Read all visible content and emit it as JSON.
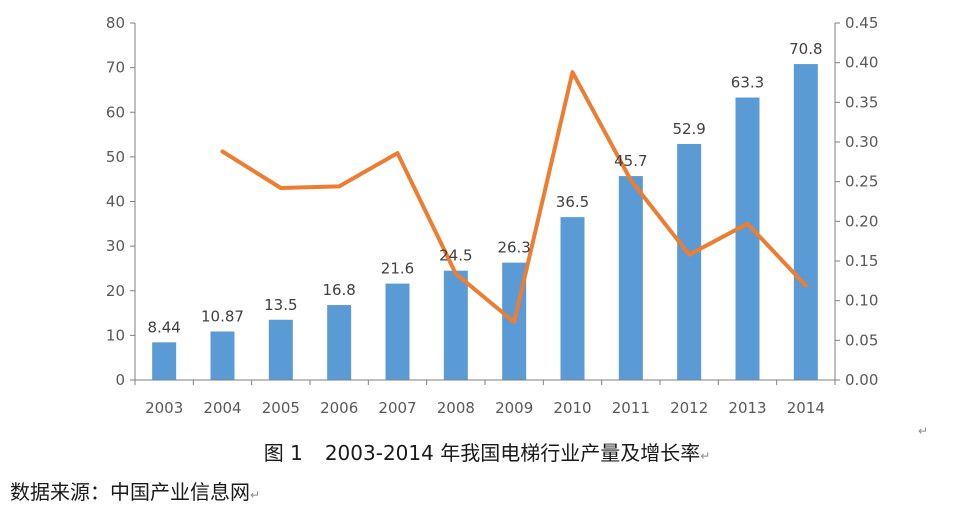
{
  "chart_data": {
    "type": "bar",
    "categories": [
      "2003",
      "2004",
      "2005",
      "2006",
      "2007",
      "2008",
      "2009",
      "2010",
      "2011",
      "2012",
      "2013",
      "2014"
    ],
    "series": [
      {
        "type": "bar",
        "axis": "left",
        "color": "#5b9bd5",
        "values": [
          8.44,
          10.87,
          13.5,
          16.8,
          21.6,
          24.5,
          26.3,
          36.5,
          45.7,
          52.9,
          63.3,
          70.8
        ],
        "labels": [
          "8.44",
          "10.87",
          "13.5",
          "16.8",
          "21.6",
          "24.5",
          "26.3",
          "36.5",
          "45.7",
          "52.9",
          "63.3",
          "70.8"
        ]
      },
      {
        "type": "line",
        "axis": "right",
        "color": "#ed7d31",
        "values": [
          null,
          0.288,
          0.242,
          0.244,
          0.286,
          0.134,
          0.073,
          0.388,
          0.252,
          0.158,
          0.197,
          0.119
        ]
      }
    ],
    "y_left": {
      "min": 0,
      "max": 80,
      "step": 10,
      "ticks": [
        "0",
        "10",
        "20",
        "30",
        "40",
        "50",
        "60",
        "70",
        "80"
      ]
    },
    "y_right": {
      "min": 0,
      "max": 0.45,
      "step": 0.05,
      "ticks": [
        "0.00",
        "0.05",
        "0.10",
        "0.15",
        "0.20",
        "0.25",
        "0.30",
        "0.35",
        "0.40",
        "0.45"
      ]
    },
    "grid": false,
    "legend": "none"
  },
  "caption": {
    "figure_no": "图 1",
    "title": "2003-2014 年我国电梯行业产量及增长率"
  },
  "source": "数据来源：中国产业信息网",
  "paragraph_mark": "↵"
}
